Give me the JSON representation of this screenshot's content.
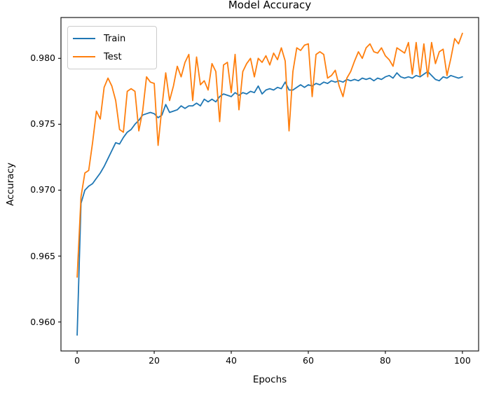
{
  "figure": {
    "kind": "matplotlib-line-figure"
  },
  "chart_data": {
    "type": "line",
    "title": "Model Accuracy",
    "xlabel": "Epochs",
    "ylabel": "Accuracy",
    "xlim": [
      -4.2,
      104.2
    ],
    "ylim": [
      0.9578,
      0.9831
    ],
    "grid": false,
    "legend": {
      "position": "upper left",
      "entries": [
        "Train",
        "Test"
      ]
    },
    "x_ticks": {
      "values": [
        0,
        20,
        40,
        60,
        80,
        100
      ],
      "labels": [
        "0",
        "20",
        "40",
        "60",
        "80",
        "100"
      ]
    },
    "y_ticks": {
      "values": [
        0.96,
        0.965,
        0.97,
        0.975,
        0.98
      ],
      "labels": [
        "0.960",
        "0.965",
        "0.970",
        "0.975",
        "0.980"
      ]
    },
    "x": [
      0,
      1,
      2,
      3,
      4,
      5,
      6,
      7,
      8,
      9,
      10,
      11,
      12,
      13,
      14,
      15,
      16,
      17,
      18,
      19,
      20,
      21,
      22,
      23,
      24,
      25,
      26,
      27,
      28,
      29,
      30,
      31,
      32,
      33,
      34,
      35,
      36,
      37,
      38,
      39,
      40,
      41,
      42,
      43,
      44,
      45,
      46,
      47,
      48,
      49,
      50,
      51,
      52,
      53,
      54,
      55,
      56,
      57,
      58,
      59,
      60,
      61,
      62,
      63,
      64,
      65,
      66,
      67,
      68,
      69,
      70,
      71,
      72,
      73,
      74,
      75,
      76,
      77,
      78,
      79,
      80,
      81,
      82,
      83,
      84,
      85,
      86,
      87,
      88,
      89,
      90,
      91,
      92,
      93,
      94,
      95,
      96,
      97,
      98,
      99,
      100
    ],
    "series": [
      {
        "name": "Train",
        "color": "#1f77b4",
        "values": [
          0.959,
          0.969,
          0.97,
          0.9703,
          0.9705,
          0.9709,
          0.9713,
          0.9718,
          0.9724,
          0.973,
          0.9736,
          0.9735,
          0.974,
          0.9744,
          0.9746,
          0.975,
          0.9753,
          0.9757,
          0.9758,
          0.9759,
          0.9758,
          0.9755,
          0.9757,
          0.9765,
          0.9759,
          0.976,
          0.9761,
          0.9764,
          0.9762,
          0.9764,
          0.9764,
          0.9766,
          0.9764,
          0.9769,
          0.9767,
          0.9769,
          0.9767,
          0.9771,
          0.9773,
          0.9772,
          0.9771,
          0.9774,
          0.9772,
          0.9774,
          0.9773,
          0.9775,
          0.9774,
          0.9779,
          0.9773,
          0.9776,
          0.9777,
          0.9776,
          0.9778,
          0.9777,
          0.9782,
          0.9776,
          0.9776,
          0.9778,
          0.978,
          0.9778,
          0.978,
          0.9779,
          0.9781,
          0.978,
          0.9782,
          0.9781,
          0.9783,
          0.9782,
          0.9783,
          0.9782,
          0.9784,
          0.9783,
          0.9784,
          0.9783,
          0.9785,
          0.9784,
          0.9785,
          0.9783,
          0.9785,
          0.9784,
          0.9786,
          0.9787,
          0.9785,
          0.9789,
          0.9786,
          0.9785,
          0.9786,
          0.9785,
          0.9787,
          0.9786,
          0.9788,
          0.979,
          0.9787,
          0.9784,
          0.9783,
          0.9786,
          0.9785,
          0.9787,
          0.9786,
          0.9785,
          0.9786
        ]
      },
      {
        "name": "Test",
        "color": "#ff7f0e",
        "values": [
          0.9634,
          0.9695,
          0.9713,
          0.9715,
          0.9736,
          0.976,
          0.9754,
          0.9778,
          0.9785,
          0.9779,
          0.9768,
          0.9746,
          0.9744,
          0.9775,
          0.9777,
          0.9775,
          0.9745,
          0.976,
          0.9786,
          0.9782,
          0.9781,
          0.9734,
          0.9763,
          0.9789,
          0.9768,
          0.9779,
          0.9794,
          0.9786,
          0.9797,
          0.9803,
          0.9768,
          0.9801,
          0.978,
          0.9783,
          0.9776,
          0.9796,
          0.979,
          0.9752,
          0.9795,
          0.9797,
          0.9774,
          0.9803,
          0.9761,
          0.979,
          0.9796,
          0.98,
          0.9786,
          0.98,
          0.9797,
          0.9802,
          0.9795,
          0.9804,
          0.9799,
          0.9808,
          0.9798,
          0.9745,
          0.979,
          0.9808,
          0.9806,
          0.981,
          0.9811,
          0.9771,
          0.9803,
          0.9805,
          0.9803,
          0.9785,
          0.9787,
          0.9791,
          0.9779,
          0.9771,
          0.9785,
          0.979,
          0.9798,
          0.9805,
          0.98,
          0.9808,
          0.9811,
          0.9805,
          0.9804,
          0.9808,
          0.9802,
          0.9799,
          0.9794,
          0.9808,
          0.9806,
          0.9804,
          0.9812,
          0.9788,
          0.9812,
          0.9787,
          0.9811,
          0.9786,
          0.9812,
          0.9796,
          0.9805,
          0.9807,
          0.9787,
          0.98,
          0.9815,
          0.9811,
          0.9819
        ]
      }
    ]
  }
}
